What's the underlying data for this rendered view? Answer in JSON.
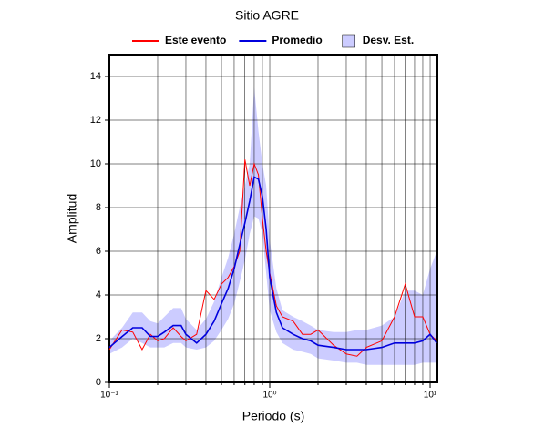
{
  "chart_data": {
    "type": "line",
    "title": "Sitio AGRE",
    "x_label": "Periodo (s)",
    "y_label": "Amplitud",
    "x": [
      0.1,
      0.12,
      0.14,
      0.16,
      0.18,
      0.2,
      0.22,
      0.25,
      0.28,
      0.3,
      0.35,
      0.4,
      0.45,
      0.5,
      0.55,
      0.6,
      0.65,
      0.7,
      0.75,
      0.8,
      0.85,
      0.9,
      0.95,
      1.0,
      1.1,
      1.2,
      1.4,
      1.6,
      1.8,
      2,
      2.5,
      3,
      3.5,
      4,
      5,
      6,
      7,
      8,
      9,
      10,
      11
    ],
    "series": [
      {
        "name": "Este evento",
        "color": "#ff0000",
        "values": [
          1.5,
          2.4,
          2.3,
          1.5,
          2.2,
          1.9,
          2.0,
          2.5,
          2.1,
          1.9,
          2.2,
          4.2,
          3.8,
          4.5,
          4.8,
          5.3,
          6.0,
          10.2,
          9.0,
          10.0,
          9.5,
          7.5,
          6.0,
          5.0,
          3.5,
          3.0,
          2.8,
          2.2,
          2.2,
          2.4,
          1.7,
          1.3,
          1.2,
          1.6,
          1.9,
          3.0,
          4.5,
          3.0,
          3.0,
          2.2,
          1.9
        ]
      },
      {
        "name": "Promedio",
        "color": "#0000dd",
        "values": [
          1.6,
          2.1,
          2.5,
          2.5,
          2.1,
          2.1,
          2.3,
          2.6,
          2.6,
          2.2,
          1.8,
          2.2,
          2.8,
          3.6,
          4.3,
          5.2,
          6.3,
          7.3,
          8.3,
          9.4,
          9.3,
          8.5,
          7.0,
          4.8,
          3.2,
          2.5,
          2.2,
          2.0,
          1.9,
          1.7,
          1.6,
          1.5,
          1.5,
          1.5,
          1.6,
          1.8,
          1.8,
          1.8,
          1.9,
          2.2,
          1.8
        ]
      }
    ],
    "band": {
      "name": "Desv. Est.",
      "color": "#ccccff",
      "lower": [
        1.3,
        1.6,
        2.0,
        1.8,
        1.6,
        1.6,
        1.6,
        1.8,
        1.8,
        1.6,
        1.5,
        1.6,
        1.9,
        2.4,
        2.9,
        3.6,
        4.6,
        5.6,
        6.8,
        7.6,
        7.5,
        6.8,
        5.0,
        3.3,
        2.3,
        1.8,
        1.5,
        1.4,
        1.3,
        1.1,
        1.0,
        0.9,
        0.9,
        0.8,
        0.8,
        0.8,
        0.8,
        0.8,
        0.9,
        0.9,
        0.9
      ],
      "upper": [
        1.9,
        2.5,
        3.2,
        3.2,
        2.8,
        2.7,
        3.0,
        3.4,
        3.4,
        2.9,
        2.4,
        2.9,
        3.7,
        4.8,
        5.7,
        6.8,
        8.0,
        9.0,
        10.0,
        13.5,
        11.5,
        10.0,
        9.0,
        6.5,
        4.3,
        3.3,
        3.0,
        2.8,
        2.6,
        2.4,
        2.3,
        2.3,
        2.4,
        2.4,
        2.6,
        3.0,
        4.2,
        4.2,
        4.0,
        5.2,
        6.0
      ]
    },
    "xscale": "log",
    "xlim": [
      0.1,
      11.1
    ],
    "xticks": [
      {
        "value": 0.1,
        "label": "10⁻¹"
      },
      {
        "value": 1,
        "label": "10⁰"
      },
      {
        "value": 10,
        "label": "10¹"
      }
    ],
    "xminorticks": [
      0.2,
      0.3,
      0.4,
      0.5,
      0.6,
      0.7,
      0.8,
      0.9,
      2,
      3,
      4,
      5,
      6,
      7,
      8,
      9
    ],
    "ylim": [
      0,
      15
    ],
    "yticks": [
      0,
      2,
      4,
      6,
      8,
      10,
      12,
      14
    ],
    "grid": true,
    "legend": "top"
  }
}
